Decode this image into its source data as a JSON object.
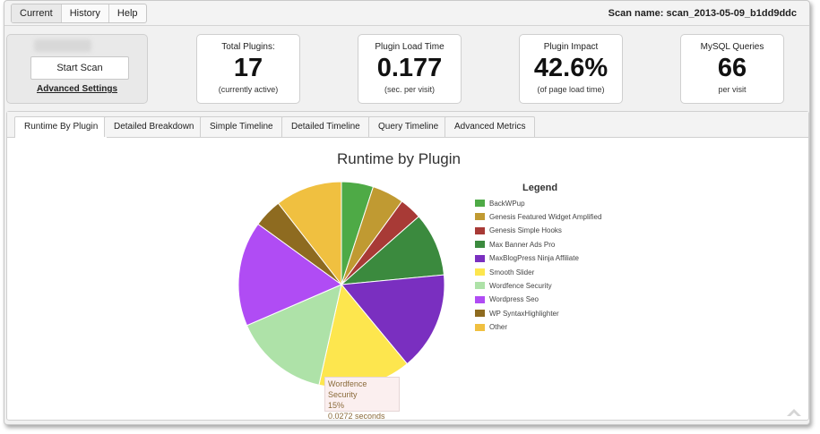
{
  "topbar": {
    "nav": [
      "Current",
      "History",
      "Help"
    ],
    "active_index": 0,
    "scan_name": "Scan name: scan_2013-05-09_b1dd9ddc"
  },
  "scan_box": {
    "start_label": "Start Scan",
    "advanced_label": "Advanced Settings"
  },
  "metrics": [
    {
      "label": "Total Plugins:",
      "value": "17",
      "sub": "(currently active)"
    },
    {
      "label": "Plugin Load Time",
      "value": "0.177",
      "sub": "(sec. per visit)"
    },
    {
      "label": "Plugin Impact",
      "value": "42.6%",
      "sub": "(of page load time)"
    },
    {
      "label": "MySQL Queries",
      "value": "66",
      "sub": "per visit"
    }
  ],
  "tabs": [
    "Runtime By Plugin",
    "Detailed Breakdown",
    "Simple Timeline",
    "Detailed Timeline",
    "Query Timeline",
    "Advanced Metrics"
  ],
  "active_tab": 0,
  "tooltip": {
    "name": "Wordfence Security",
    "percent": "15%",
    "seconds": "0.0272 seconds"
  },
  "chart_data": {
    "type": "pie",
    "title": "Runtime by Plugin",
    "legend_title": "Legend",
    "legend_position": "right",
    "slices": [
      {
        "label": "BackWPup",
        "value": 5.0,
        "color": "#4eaa46"
      },
      {
        "label": "Genesis Featured Widget Amplified",
        "value": 5.0,
        "color": "#c09a32"
      },
      {
        "label": "Genesis Simple Hooks",
        "value": 3.5,
        "color": "#a83a36"
      },
      {
        "label": "Max Banner Ads Pro",
        "value": 10.0,
        "color": "#3b8a3e"
      },
      {
        "label": "MaxBlogPress Ninja Affiliate",
        "value": 15.5,
        "color": "#7a2fc0"
      },
      {
        "label": "Smooth Slider",
        "value": 14.5,
        "color": "#fde64e"
      },
      {
        "label": "Wordfence Security",
        "value": 15.0,
        "color": "#aee2a8"
      },
      {
        "label": "Wordpress Seo",
        "value": 16.5,
        "color": "#b04cf4"
      },
      {
        "label": "WP SyntaxHighlighter",
        "value": 4.5,
        "color": "#8e6b20"
      },
      {
        "label": "Other",
        "value": 10.5,
        "color": "#f0c040"
      }
    ]
  }
}
